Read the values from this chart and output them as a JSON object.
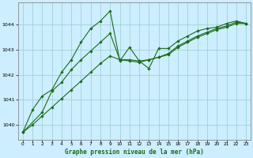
{
  "title": "Graphe pression niveau de la mer (hPa)",
  "background_color": "#cceeff",
  "grid_color": "#99cccc",
  "line_color": "#1a6b1a",
  "marker_color": "#1a6b1a",
  "xlim": [
    -0.5,
    23.5
  ],
  "ylim": [
    1039.4,
    1044.9
  ],
  "yticks": [
    1040,
    1041,
    1042,
    1043,
    1044
  ],
  "xticks": [
    0,
    1,
    2,
    3,
    4,
    5,
    6,
    7,
    8,
    9,
    10,
    11,
    12,
    13,
    14,
    15,
    16,
    17,
    18,
    19,
    20,
    21,
    22,
    23
  ],
  "series1_x": [
    0,
    1,
    2,
    3,
    4,
    5,
    6,
    7,
    8,
    9,
    10,
    11,
    12,
    13,
    14,
    15,
    16,
    17,
    18,
    19,
    20,
    21,
    22,
    23
  ],
  "series1_y": [
    1039.7,
    1040.6,
    1041.15,
    1041.4,
    1042.1,
    1042.6,
    1043.3,
    1043.85,
    1044.15,
    1044.55,
    1042.55,
    1043.1,
    1042.55,
    1042.25,
    1043.05,
    1043.05,
    1043.35,
    1043.55,
    1043.75,
    1043.85,
    1043.9,
    1044.05,
    1044.15,
    1044.05
  ],
  "series2_x": [
    0,
    1,
    2,
    3,
    4,
    5,
    6,
    7,
    8,
    9,
    10,
    11,
    12,
    13,
    14,
    15,
    16,
    17,
    18,
    19,
    20,
    21,
    22,
    23
  ],
  "series2_y": [
    1039.7,
    1040.0,
    1040.35,
    1040.7,
    1041.05,
    1041.4,
    1041.75,
    1042.1,
    1042.45,
    1042.75,
    1042.6,
    1042.55,
    1042.5,
    1042.6,
    1042.7,
    1042.8,
    1043.1,
    1043.3,
    1043.5,
    1043.65,
    1043.8,
    1043.9,
    1044.05,
    1044.05
  ],
  "series3_x": [
    0,
    2,
    3,
    4,
    5,
    6,
    7,
    8,
    9,
    10,
    11,
    12,
    13,
    14,
    15,
    16,
    17,
    18,
    19,
    20,
    21,
    22,
    23
  ],
  "series3_y": [
    1039.7,
    1040.5,
    1041.35,
    1041.7,
    1042.2,
    1042.6,
    1042.95,
    1043.3,
    1043.65,
    1042.6,
    1042.6,
    1042.55,
    1042.6,
    1042.7,
    1042.85,
    1043.15,
    1043.35,
    1043.55,
    1043.7,
    1043.85,
    1043.95,
    1044.1,
    1044.05
  ]
}
